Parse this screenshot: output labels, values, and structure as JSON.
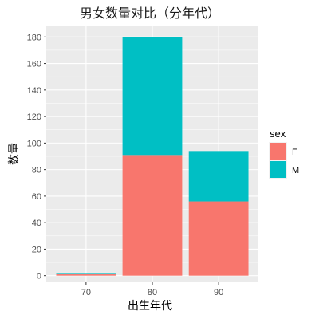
{
  "chart_data": {
    "type": "bar",
    "stacked": true,
    "title": "男女数量对比（分年代）",
    "xlabel": "出生年代",
    "ylabel": "数量",
    "categories": [
      "70",
      "80",
      "90"
    ],
    "series": [
      {
        "name": "F",
        "color": "#F8766D",
        "values": [
          1,
          91,
          56
        ]
      },
      {
        "name": "M",
        "color": "#00BFC4",
        "values": [
          1,
          89,
          38
        ]
      }
    ],
    "ylim": [
      -5,
      188
    ],
    "yticks": [
      0,
      20,
      40,
      60,
      80,
      100,
      120,
      140,
      160,
      180
    ],
    "grid": true,
    "legend": {
      "title": "sex",
      "position": "right"
    }
  }
}
